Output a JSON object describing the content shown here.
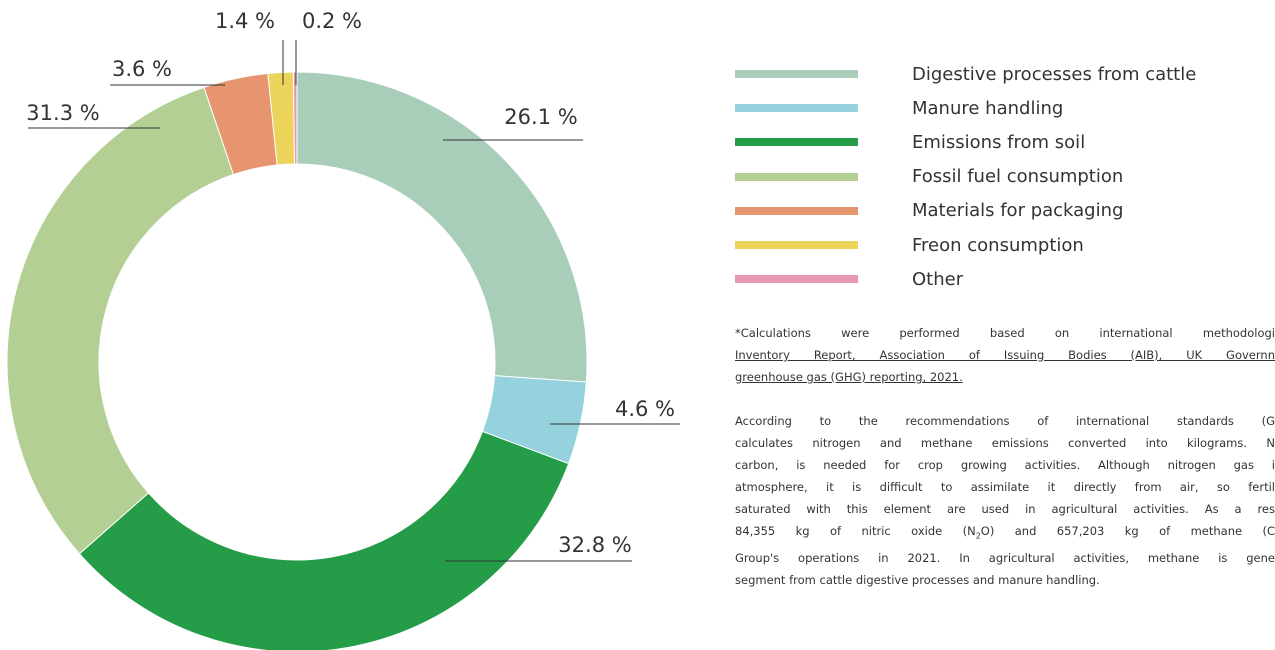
{
  "chart_data": {
    "type": "donut",
    "categories": [
      "Digestive processes from cattle",
      "Manure handling",
      "Emissions from soil",
      "Fossil fuel consumption",
      "Materials for packaging",
      "Freon consumption",
      "Other"
    ],
    "values": [
      26.1,
      4.6,
      32.8,
      31.3,
      3.6,
      1.4,
      0.2
    ],
    "value_labels": [
      "26.1 %",
      "4.6 %",
      "32.8 %",
      "31.3 %",
      "3.6 %",
      "1.4 %",
      "0.2 %"
    ],
    "colors": [
      "#a8cdb8",
      "#95d2dd",
      "#259c48",
      "#b3cf93",
      "#e6956f",
      "#ecd35a",
      "#e698b0"
    ]
  },
  "notes": {
    "footnote": [
      "*Calculations were performed based on international methodologi",
      "Inventory Report, Association of Issuing Bodies (AIB), UK Governn",
      "greenhouse gas (GHG) reporting, 2021."
    ],
    "paragraph": [
      "According to the recommendations of international standards (G",
      "calculates nitrogen and methane emissions converted into kilograms. N",
      "carbon, is needed for crop growing activities. Although nitrogen gas i",
      "atmosphere, it is difficult to assimilate it directly from air, so fertil",
      "saturated with this element are used in agricultural activities. As a res"
    ],
    "formula_line": {
      "before": "84,355 kg of nitric oxide (N",
      "sub": "2",
      "after": "O) and 657,203 kg of methane (C"
    },
    "paragraph_end": [
      "Group's operations in 2021. In agricultural activities, methane is gene",
      "segment from cattle digestive processes and manure handling."
    ]
  }
}
